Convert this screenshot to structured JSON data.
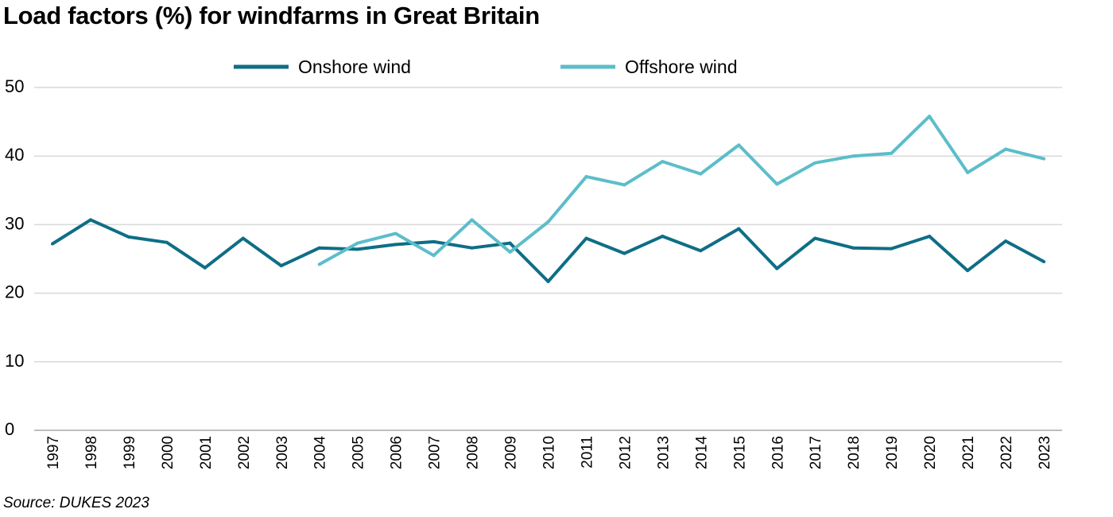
{
  "chart_data": {
    "type": "line",
    "title": "Load factors (%) for windfarms in Great Britain",
    "source": "Source: DUKES 2023",
    "x": [
      1997,
      1998,
      1999,
      2000,
      2001,
      2002,
      2003,
      2004,
      2005,
      2006,
      2007,
      2008,
      2009,
      2010,
      2011,
      2012,
      2013,
      2014,
      2015,
      2016,
      2017,
      2018,
      2019,
      2020,
      2021,
      2022,
      2023
    ],
    "x_labels": [
      "1997",
      "1998",
      "1999",
      "2000",
      "2001",
      "2002",
      "2003",
      "2004",
      "2005",
      "2006",
      "2007",
      "2008",
      "2009",
      "2010",
      "2011",
      "2012",
      "2013",
      "2014",
      "2015",
      "2016",
      "2017",
      "2018",
      "2019",
      "2020",
      "2021",
      "2022",
      "2023"
    ],
    "y_ticks": [
      "0",
      "10",
      "20",
      "30",
      "40",
      "50"
    ],
    "ylim": [
      0,
      50
    ],
    "grid": true,
    "legend_position": "top-center",
    "series": [
      {
        "name": "Onshore wind",
        "color": "#0e6e86",
        "values": [
          27.2,
          30.7,
          28.2,
          27.4,
          23.7,
          28.0,
          24.0,
          26.6,
          26.4,
          27.1,
          27.5,
          26.6,
          27.3,
          21.7,
          28.0,
          25.8,
          28.3,
          26.2,
          29.4,
          23.6,
          28.0,
          26.6,
          26.5,
          28.3,
          23.3,
          27.6,
          24.6
        ]
      },
      {
        "name": "Offshore wind",
        "color": "#5cbdca",
        "values": [
          null,
          null,
          null,
          null,
          null,
          null,
          null,
          24.2,
          27.3,
          28.7,
          25.5,
          30.7,
          26.0,
          30.4,
          37.0,
          35.8,
          39.2,
          37.4,
          41.6,
          35.9,
          39.0,
          40.0,
          40.4,
          45.8,
          37.6,
          41.0,
          39.6
        ]
      }
    ]
  }
}
